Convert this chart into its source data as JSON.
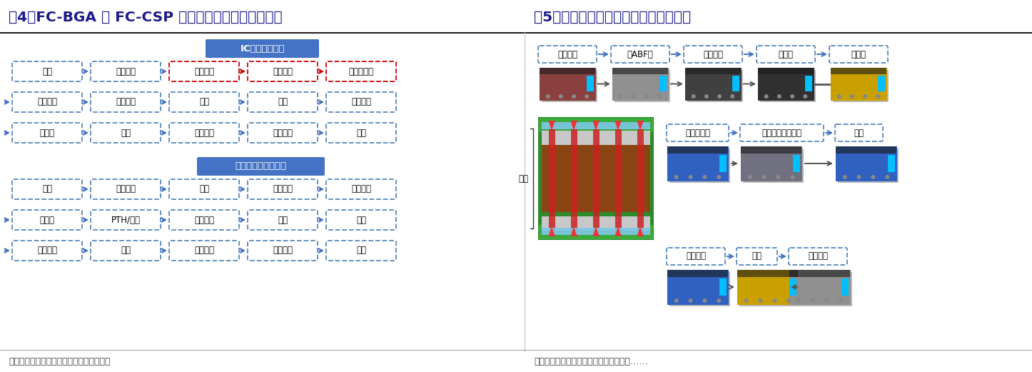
{
  "title_left": "图4：FC-BGA 与 FC-CSP 在内层线路生产工序有差别",
  "title_right": "图5：内层工艺加工复杂导致产品良率低",
  "title_color": "#1a1a8c",
  "title_fontsize": 14.5,
  "bg_color": "#ffffff",
  "ic_label": "IC载板生产流程",
  "ic_label_bg": "#4472c4",
  "ic_label_color": "#ffffff",
  "general_label": "一般电路板生产流程",
  "general_label_bg": "#4472c4",
  "general_label_color": "#ffffff",
  "source_left": "资料来源：南亚电路年报、开源证券研究所",
  "source_right": "资料来源：南亚电路年报、《印制线路板",
  "box_border_normal": "#5588bb",
  "box_border_red": "#cc0000",
  "box_fill": "#ffffff",
  "arrow_color": "#4472c4",
  "text_color": "#000000",
  "ic_row1": [
    "裁板",
    "机械钻孔",
    "内层线路",
    "表面粗化",
    "绝缘层贴膜"
  ],
  "ic_row1_red": [
    2,
    3,
    4
  ],
  "ic_row2": [
    "镭射钻孔",
    "外层线路",
    "电镀",
    "绿漆",
    "表面处理"
  ],
  "ic_row2_red": [],
  "ic_row3": [
    "锡凸块",
    "切割",
    "电性测试",
    "外观检查",
    "包装"
  ],
  "ic_row3_red": [],
  "gen_row1": [
    "裁板",
    "内层线路",
    "压合",
    "机械钻孔",
    "镭射钻孔"
  ],
  "gen_row1_red": [],
  "gen_row2": [
    "去胶渣",
    "PTH/电镀",
    "外层线路",
    "防焊",
    "文字"
  ],
  "gen_row2_red": [],
  "gen_row3": [
    "表面处理",
    "成型",
    "电性测试",
    "外观检查",
    "包装"
  ],
  "gen_row3_red": [],
  "right_top_row": [
    "表面粗化",
    "压ABF膜",
    "镭射钻孔",
    "除胶渣",
    "化学铜"
  ],
  "right_mid_row": [
    "压微影干膜",
    "曝光（影像转移）",
    "显影"
  ],
  "right_bot_row": [
    "线路电镀",
    "去膜",
    "快速蚀刻"
  ],
  "inner_label": "内层",
  "right_colors_top": [
    "#8B4040",
    "#909090",
    "#404040",
    "#303030",
    "#C8A000"
  ],
  "right_colors_mid": [
    "#3060C0",
    "#707080",
    "#3060C0"
  ],
  "right_colors_bot": [
    "#3060C0",
    "#C8A000",
    "#909090"
  ]
}
